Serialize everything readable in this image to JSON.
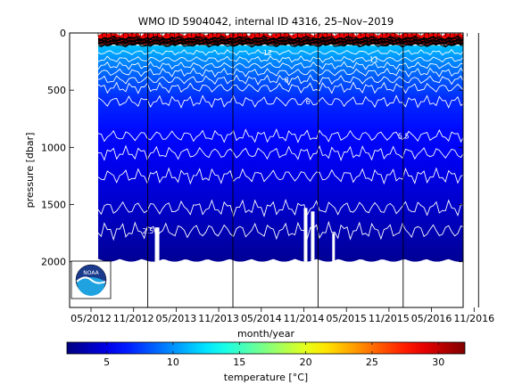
{
  "chart_data": {
    "type": "heatmap",
    "title": "WMO ID 5904042, internal ID 4316, 25–Nov–2019",
    "xlabel": "month/year",
    "ylabel": "pressure [dbar]",
    "y_axis": {
      "range": [
        0,
        2400
      ],
      "reversed": true,
      "ticks": [
        0,
        500,
        1000,
        1500,
        2000
      ]
    },
    "x_axis": {
      "range": [
        "2012-05",
        "2016-12"
      ],
      "ticks": [
        "05/2012",
        "11/2012",
        "05/2013",
        "11/2013",
        "05/2014",
        "11/2014",
        "05/2015",
        "11/2015",
        "05/2016",
        "11/2016"
      ]
    },
    "year_boundaries": [
      "2013-01",
      "2014-01",
      "2015-01",
      "2016-01"
    ],
    "colorbar": {
      "label": "temperature [°C]",
      "range": [
        2,
        32
      ],
      "ticks": [
        5,
        10,
        15,
        20,
        25,
        30
      ],
      "colormap": "jet"
    },
    "data_depth_max_dbar": 2000,
    "surface_layer": {
      "temperature_c": 28.5,
      "approx_depth_dbar": [
        0,
        100
      ]
    },
    "isotherms": [
      {
        "label": "12",
        "temperature_c": 12,
        "approx_depth_dbar": 170
      },
      {
        "label": "11",
        "temperature_c": 11,
        "approx_depth_dbar": 230
      },
      {
        "label": "10",
        "temperature_c": 10,
        "approx_depth_dbar": 285
      },
      {
        "label": "9",
        "temperature_c": 9,
        "approx_depth_dbar": 345
      },
      {
        "label": "8",
        "temperature_c": 8,
        "approx_depth_dbar": 410
      },
      {
        "label": "7",
        "temperature_c": 7,
        "approx_depth_dbar": 480
      },
      {
        "label": "6",
        "temperature_c": 6,
        "approx_depth_dbar": 600
      },
      {
        "label": "5.5",
        "temperature_c": 5.5,
        "approx_depth_dbar": 900
      },
      {
        "label": "5",
        "temperature_c": 5,
        "approx_depth_dbar": 1050
      },
      {
        "label": "4",
        "temperature_c": 4,
        "approx_depth_dbar": 1250
      },
      {
        "label": "3",
        "temperature_c": 3,
        "approx_depth_dbar": 1530
      },
      {
        "label": "2.5",
        "temperature_c": 2.5,
        "approx_depth_dbar": 1730
      }
    ],
    "logo": "NOAA"
  }
}
